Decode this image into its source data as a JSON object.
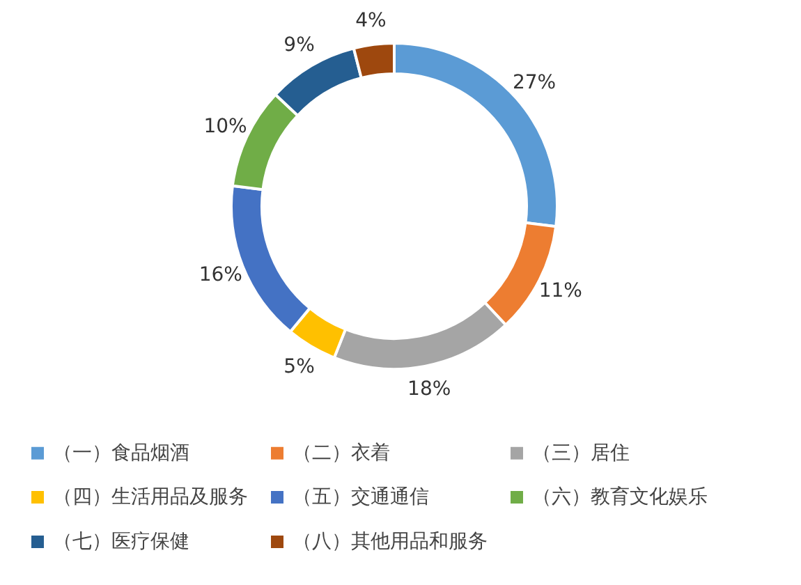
{
  "chart_data": {
    "type": "donut",
    "categories": [
      "（一）食品烟酒",
      "（二）衣着",
      "（三）居住",
      "（四）生活用品及服务",
      "（五）交通通信",
      "（六）教育文化娱乐",
      "（七）医疗保健",
      "（八）其他用品和服务"
    ],
    "values": [
      27,
      11,
      18,
      5,
      16,
      10,
      9,
      4
    ],
    "colors": [
      "#5b9bd5",
      "#ed7d31",
      "#a5a5a5",
      "#ffc000",
      "#4472c4",
      "#70ad47",
      "#255e91",
      "#9e480e"
    ],
    "value_labels": [
      "27%",
      "11%",
      "18%",
      "5%",
      "16%",
      "10%",
      "9%",
      "4%"
    ],
    "legend": "bottom"
  }
}
